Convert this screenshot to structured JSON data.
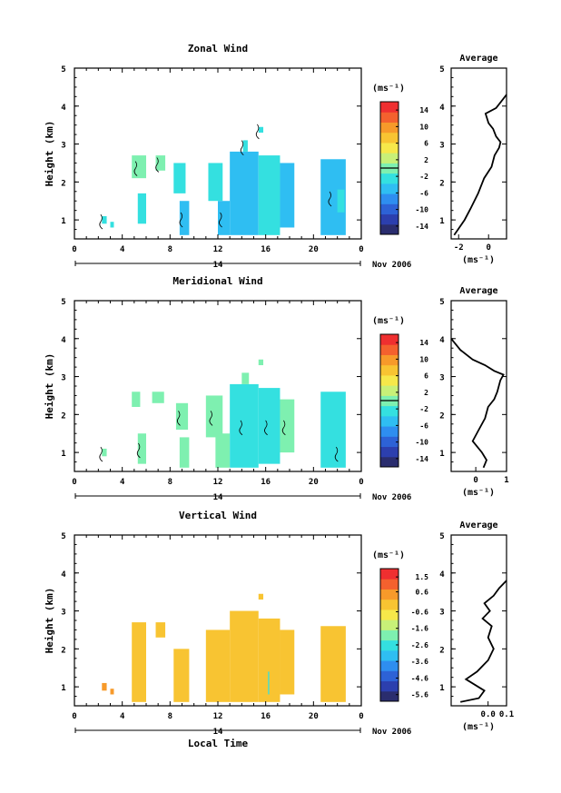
{
  "date_label": "Nov 2006",
  "xlabel": "Local Time",
  "ylabel": "Height (km)",
  "unit_label": "(ms⁻¹)",
  "avg_title": "Average",
  "day_label": "14",
  "chart_data": [
    {
      "type": "heatmap",
      "title": "Zonal Wind",
      "x_ticks": [
        "0",
        "4",
        "8",
        "12",
        "16",
        "20",
        "0"
      ],
      "xlim": [
        0,
        24
      ],
      "y_ticks": [
        "1",
        "2",
        "3",
        "4",
        "5"
      ],
      "ylim": [
        0.5,
        5
      ],
      "colorbar": {
        "ticks": [
          "14",
          "10",
          "6",
          "2",
          "-2",
          "-6",
          "-10",
          "-14"
        ],
        "range": [
          -16,
          16
        ],
        "zero_line": 0
      },
      "echo_blocks": [
        {
          "t0": 2.3,
          "t1": 2.7,
          "h0": 0.9,
          "h1": 1.1,
          "v": -3
        },
        {
          "t0": 3.0,
          "t1": 3.3,
          "h0": 0.8,
          "h1": 0.95,
          "v": -3
        },
        {
          "t0": 4.8,
          "t1": 6.0,
          "h0": 2.1,
          "h1": 2.7,
          "v": 1
        },
        {
          "t0": 5.3,
          "t1": 6.0,
          "h0": 0.9,
          "h1": 1.7,
          "v": -2
        },
        {
          "t0": 6.8,
          "t1": 7.6,
          "h0": 2.3,
          "h1": 2.7,
          "v": 1
        },
        {
          "t0": 8.3,
          "t1": 9.3,
          "h0": 1.7,
          "h1": 2.5,
          "v": -3
        },
        {
          "t0": 8.8,
          "t1": 9.6,
          "h0": 0.6,
          "h1": 1.5,
          "v": -4
        },
        {
          "t0": 11.2,
          "t1": 12.4,
          "h0": 1.5,
          "h1": 2.5,
          "v": -3
        },
        {
          "t0": 12.0,
          "t1": 13.0,
          "h0": 0.6,
          "h1": 1.5,
          "v": -4
        },
        {
          "t0": 13.0,
          "t1": 15.4,
          "h0": 0.6,
          "h1": 2.8,
          "v": -4
        },
        {
          "t0": 14.1,
          "t1": 14.5,
          "h0": 2.8,
          "h1": 3.1,
          "v": -2
        },
        {
          "t0": 15.4,
          "t1": 17.2,
          "h0": 0.6,
          "h1": 2.7,
          "v": -3
        },
        {
          "t0": 15.4,
          "t1": 15.8,
          "h0": 3.3,
          "h1": 3.45,
          "v": -2
        },
        {
          "t0": 17.2,
          "t1": 18.4,
          "h0": 0.8,
          "h1": 2.5,
          "v": -4
        },
        {
          "t0": 20.6,
          "t1": 22.7,
          "h0": 0.6,
          "h1": 2.6,
          "v": -4
        },
        {
          "t0": 22.0,
          "t1": 22.6,
          "h0": 1.2,
          "h1": 1.8,
          "v": -3
        }
      ],
      "average": {
        "xlim": [
          -2.5,
          1.2
        ],
        "x_ticks": [
          "-2",
          "0"
        ],
        "x_tick_values": [
          -2,
          0
        ],
        "y_ticks": [
          "1",
          "2",
          "3",
          "4",
          "5"
        ],
        "profile": [
          [
            -2.3,
            0.6
          ],
          [
            -1.6,
            1.0
          ],
          [
            -1.2,
            1.3
          ],
          [
            -0.7,
            1.7
          ],
          [
            -0.3,
            2.1
          ],
          [
            0.2,
            2.4
          ],
          [
            0.4,
            2.7
          ],
          [
            0.7,
            2.9
          ],
          [
            0.8,
            3.05
          ],
          [
            0.5,
            3.2
          ],
          [
            0.3,
            3.4
          ],
          [
            0.0,
            3.55
          ],
          [
            -0.2,
            3.8
          ],
          [
            0.5,
            3.95
          ],
          [
            1.0,
            4.2
          ],
          [
            1.2,
            4.3
          ]
        ]
      }
    },
    {
      "type": "heatmap",
      "title": "Meridional Wind",
      "x_ticks": [
        "0",
        "4",
        "8",
        "12",
        "16",
        "20",
        "0"
      ],
      "xlim": [
        0,
        24
      ],
      "y_ticks": [
        "1",
        "2",
        "3",
        "4",
        "5"
      ],
      "ylim": [
        0.5,
        5
      ],
      "colorbar": {
        "ticks": [
          "14",
          "10",
          "6",
          "2",
          "-2",
          "-6",
          "-10",
          "-14"
        ],
        "range": [
          -16,
          16
        ],
        "zero_line": 0
      },
      "echo_blocks": [
        {
          "t0": 2.3,
          "t1": 2.7,
          "h0": 0.9,
          "h1": 1.1,
          "v": 1
        },
        {
          "t0": 4.8,
          "t1": 5.5,
          "h0": 2.2,
          "h1": 2.6,
          "v": 1
        },
        {
          "t0": 5.3,
          "t1": 6.0,
          "h0": 0.7,
          "h1": 1.5,
          "v": 1
        },
        {
          "t0": 6.5,
          "t1": 7.5,
          "h0": 2.3,
          "h1": 2.6,
          "v": 1
        },
        {
          "t0": 8.5,
          "t1": 9.5,
          "h0": 1.6,
          "h1": 2.3,
          "v": -1
        },
        {
          "t0": 8.8,
          "t1": 9.6,
          "h0": 0.6,
          "h1": 1.4,
          "v": 0
        },
        {
          "t0": 11.0,
          "t1": 12.4,
          "h0": 1.4,
          "h1": 2.5,
          "v": 0
        },
        {
          "t0": 11.8,
          "t1": 13.0,
          "h0": 0.6,
          "h1": 1.5,
          "v": -1
        },
        {
          "t0": 13.0,
          "t1": 15.4,
          "h0": 0.6,
          "h1": 2.8,
          "v": -2
        },
        {
          "t0": 14.0,
          "t1": 14.6,
          "h0": 2.8,
          "h1": 3.1,
          "v": 1
        },
        {
          "t0": 15.4,
          "t1": 17.2,
          "h0": 0.7,
          "h1": 2.7,
          "v": -3
        },
        {
          "t0": 15.4,
          "t1": 15.8,
          "h0": 3.3,
          "h1": 3.45,
          "v": 1
        },
        {
          "t0": 17.2,
          "t1": 18.4,
          "h0": 1.0,
          "h1": 2.4,
          "v": -1
        },
        {
          "t0": 20.6,
          "t1": 22.7,
          "h0": 0.6,
          "h1": 2.6,
          "v": -2
        },
        {
          "t0": 21.8,
          "t1": 22.6,
          "h0": 0.7,
          "h1": 1.3,
          "v": -3
        }
      ],
      "average": {
        "xlim": [
          -0.8,
          1.0
        ],
        "x_ticks": [
          "0",
          "1"
        ],
        "x_tick_values": [
          0,
          1
        ],
        "y_ticks": [
          "1",
          "2",
          "3",
          "4",
          "5"
        ],
        "profile": [
          [
            0.25,
            0.6
          ],
          [
            0.35,
            0.8
          ],
          [
            0.2,
            1.0
          ],
          [
            -0.1,
            1.3
          ],
          [
            0.1,
            1.6
          ],
          [
            0.3,
            1.9
          ],
          [
            0.4,
            2.2
          ],
          [
            0.6,
            2.4
          ],
          [
            0.7,
            2.6
          ],
          [
            0.8,
            2.9
          ],
          [
            0.9,
            3.05
          ],
          [
            0.6,
            3.15
          ],
          [
            0.3,
            3.3
          ],
          [
            -0.1,
            3.45
          ],
          [
            -0.5,
            3.7
          ],
          [
            -0.8,
            4.0
          ]
        ]
      }
    },
    {
      "type": "heatmap",
      "title": "Vertical Wind",
      "x_ticks": [
        "0",
        "4",
        "8",
        "12",
        "16",
        "20",
        "0"
      ],
      "xlim": [
        0,
        24
      ],
      "y_ticks": [
        "1",
        "2",
        "3",
        "4",
        "5"
      ],
      "ylim": [
        0.5,
        5
      ],
      "colorbar": {
        "ticks": [
          "1.5",
          "0.6",
          "-0.6",
          "-1.6",
          "-2.6",
          "-3.6",
          "-4.6",
          "-5.6"
        ],
        "range": [
          -6,
          2
        ],
        "zero_line": null
      },
      "echo_blocks": [
        {
          "t0": 2.3,
          "t1": 2.7,
          "h0": 0.9,
          "h1": 1.1,
          "v": 0.2
        },
        {
          "t0": 3.0,
          "t1": 3.3,
          "h0": 0.8,
          "h1": 0.95,
          "v": 0.2
        },
        {
          "t0": 4.8,
          "t1": 6.0,
          "h0": 0.6,
          "h1": 2.7,
          "v": 0.1
        },
        {
          "t0": 6.8,
          "t1": 7.6,
          "h0": 2.3,
          "h1": 2.7,
          "v": 0.1
        },
        {
          "t0": 8.3,
          "t1": 9.6,
          "h0": 0.6,
          "h1": 2.0,
          "v": 0.1
        },
        {
          "t0": 11.0,
          "t1": 13.0,
          "h0": 0.6,
          "h1": 2.5,
          "v": 0.1
        },
        {
          "t0": 13.0,
          "t1": 15.4,
          "h0": 0.6,
          "h1": 3.0,
          "v": 0.1
        },
        {
          "t0": 15.4,
          "t1": 17.2,
          "h0": 0.6,
          "h1": 2.8,
          "v": 0.1
        },
        {
          "t0": 15.4,
          "t1": 15.8,
          "h0": 3.3,
          "h1": 3.45,
          "v": 0.1
        },
        {
          "t0": 16.2,
          "t1": 16.3,
          "h0": 0.8,
          "h1": 1.4,
          "v": -2.5
        },
        {
          "t0": 17.2,
          "t1": 18.4,
          "h0": 0.8,
          "h1": 2.5,
          "v": 0.1
        },
        {
          "t0": 20.6,
          "t1": 22.7,
          "h0": 0.6,
          "h1": 2.6,
          "v": 0.1
        }
      ],
      "average": {
        "xlim": [
          -0.2,
          0.1
        ],
        "x_ticks": [
          "0.0",
          "0.1"
        ],
        "x_tick_values": [
          0.0,
          0.1
        ],
        "y_ticks": [
          "1",
          "2",
          "3",
          "4",
          "5"
        ],
        "profile": [
          [
            -0.15,
            0.6
          ],
          [
            -0.05,
            0.7
          ],
          [
            -0.02,
            0.9
          ],
          [
            -0.12,
            1.2
          ],
          [
            -0.06,
            1.4
          ],
          [
            0.0,
            1.7
          ],
          [
            0.03,
            2.0
          ],
          [
            0.0,
            2.3
          ],
          [
            0.02,
            2.6
          ],
          [
            -0.03,
            2.8
          ],
          [
            0.01,
            3.0
          ],
          [
            -0.02,
            3.2
          ],
          [
            0.03,
            3.4
          ],
          [
            0.06,
            3.6
          ],
          [
            0.1,
            3.8
          ]
        ]
      }
    }
  ]
}
